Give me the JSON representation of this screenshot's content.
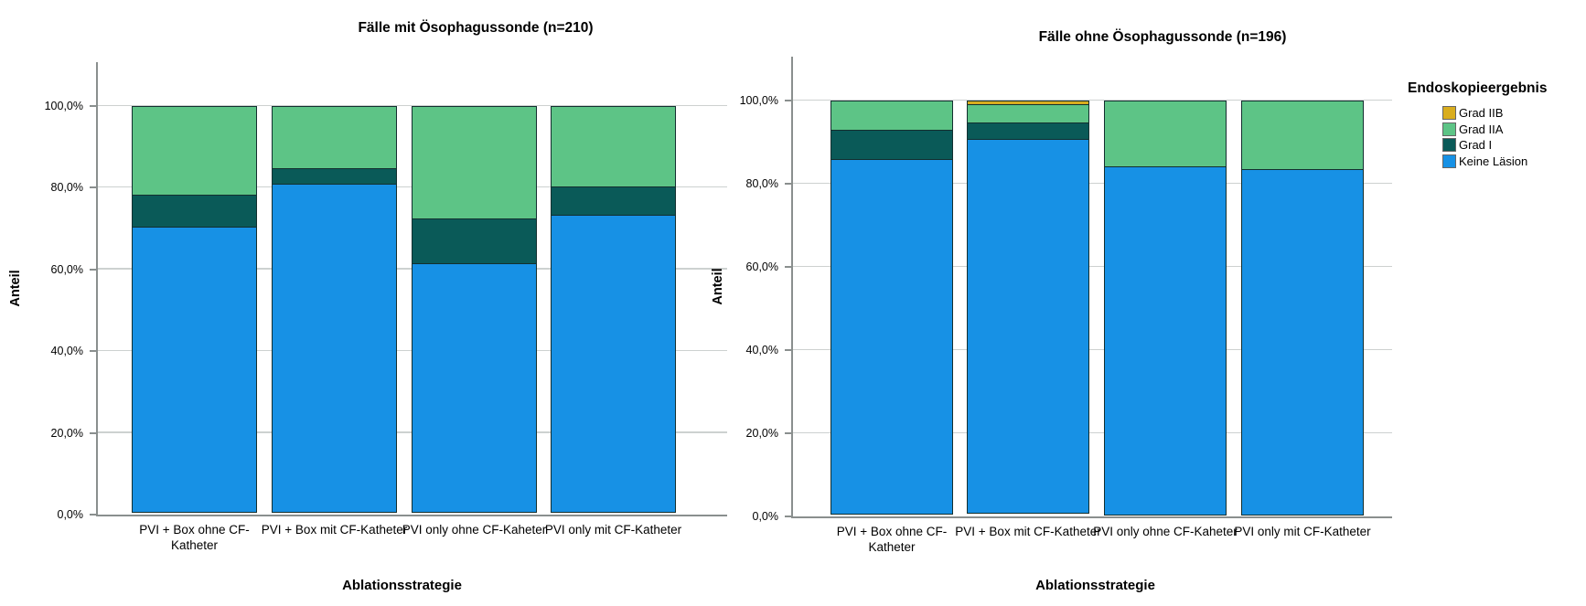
{
  "figure": {
    "background": "#ffffff"
  },
  "legend": {
    "title": "Endoskopieergebnis",
    "items": [
      {
        "label": "Grad IIB",
        "color": "#d9ad1e"
      },
      {
        "label": "Grad IIA",
        "color": "#5dc486"
      },
      {
        "label": "Grad I",
        "color": "#0a5a58"
      },
      {
        "label": "Keine Läsion",
        "color": "#1791e5"
      }
    ]
  },
  "chart_data": [
    {
      "type": "bar",
      "stacked": true,
      "title": "Fälle mit Ösophagussonde (n=210)",
      "xlabel": "Ablationsstrategie",
      "ylabel": "Anteil",
      "ylim": [
        0,
        100
      ],
      "grid": true,
      "ytick_labels": [
        "0,0%",
        "20,0%",
        "40,0%",
        "60,0%",
        "80,0%",
        "100,0%"
      ],
      "categories": [
        "PVI + Box ohne CF-Katheter",
        "PVI + Box mit CF-Katheter",
        "PVI only ohne CF-Kaheter",
        "PVI only mit CF-Katheter"
      ],
      "series": [
        {
          "name": "Keine Läsion",
          "color": "#1791e5",
          "values": [
            70.0,
            80.5,
            61.0,
            73.0
          ]
        },
        {
          "name": "Grad I",
          "color": "#0a5a58",
          "values": [
            8.0,
            4.1,
            11.3,
            7.0
          ]
        },
        {
          "name": "Grad IIA",
          "color": "#5dc486",
          "values": [
            22.0,
            15.4,
            27.7,
            20.0
          ]
        },
        {
          "name": "Grad IIB",
          "color": "#d9ad1e",
          "values": [
            0,
            0,
            0,
            0
          ]
        }
      ]
    },
    {
      "type": "bar",
      "stacked": true,
      "title": "Fälle ohne Ösophagussonde (n=196)",
      "xlabel": "Ablationsstrategie",
      "ylabel": "Anteil",
      "ylim": [
        0,
        100
      ],
      "grid": true,
      "ytick_labels": [
        "0,0%",
        "20,0%",
        "40,0%",
        "60,0%",
        "80,0%",
        "100,0%"
      ],
      "categories": [
        "PVI + Box ohne CF-Katheter",
        "PVI + Box mit CF-Katheter",
        "PVI only ohne CF-Kaheter",
        "PVI only mit CF-Katheter"
      ],
      "series": [
        {
          "name": "Keine Läsion",
          "color": "#1791e5",
          "values": [
            85.4,
            90.0,
            84.0,
            83.2
          ]
        },
        {
          "name": "Grad I",
          "color": "#0a5a58",
          "values": [
            7.3,
            4.2,
            0,
            0
          ]
        },
        {
          "name": "Grad IIA",
          "color": "#5dc486",
          "values": [
            7.3,
            4.8,
            16.0,
            16.8
          ]
        },
        {
          "name": "Grad IIB",
          "color": "#d9ad1e",
          "values": [
            0,
            1.0,
            0,
            0
          ]
        }
      ]
    }
  ]
}
